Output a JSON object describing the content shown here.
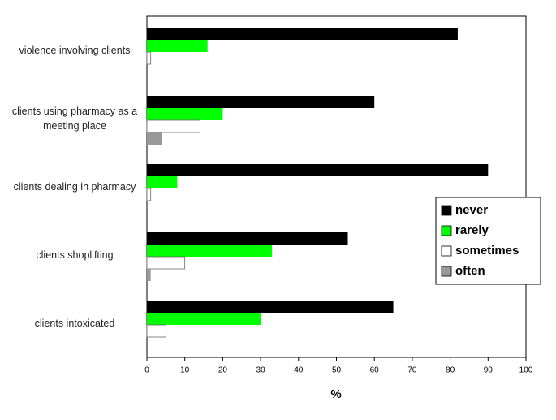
{
  "chart_data": {
    "type": "hbar",
    "categories": [
      "violence involving clients",
      "clients using pharmacy as a meeting place",
      "clients dealing in pharmacy",
      "clients shoplifting",
      "clients intoxicated"
    ],
    "series": [
      {
        "name": "never",
        "color": "#000000",
        "values": [
          82,
          60,
          90,
          53,
          65
        ]
      },
      {
        "name": "rarely",
        "color": "#00ff00",
        "values": [
          16,
          20,
          8,
          33,
          30
        ]
      },
      {
        "name": "sometimes",
        "color": "#ffffff",
        "values": [
          1,
          14,
          1,
          10,
          5
        ]
      },
      {
        "name": "often",
        "color": "#999999",
        "values": [
          0,
          4,
          0,
          1,
          0
        ]
      }
    ],
    "x_label": "%",
    "xlim": [
      0,
      100
    ],
    "xticks": [
      0,
      10,
      20,
      30,
      40,
      50,
      60,
      70,
      80,
      90,
      100
    ],
    "grid": false,
    "legend_position": "right"
  }
}
